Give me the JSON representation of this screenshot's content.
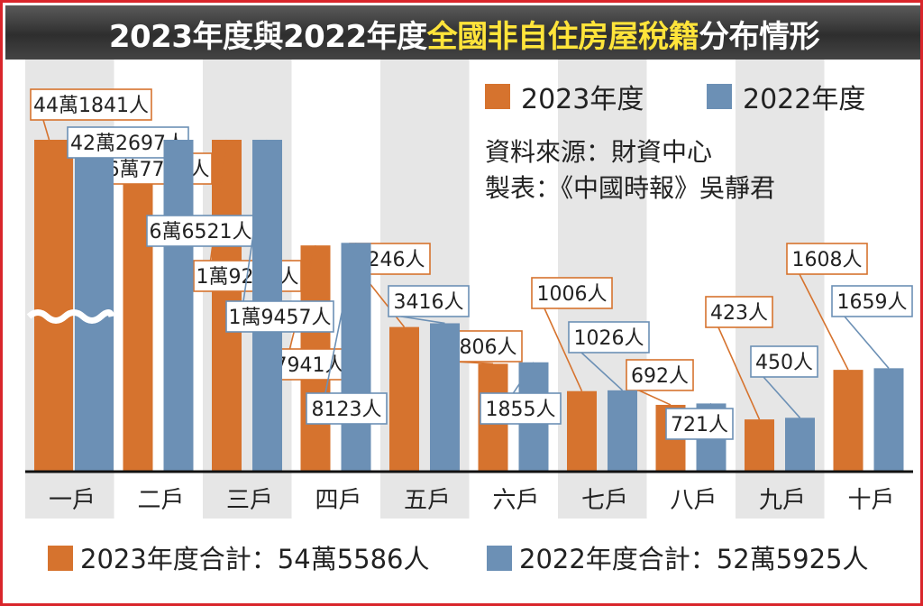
{
  "title": {
    "part1": "2023年度與2022年度",
    "part2": "全國非自住房屋稅籍",
    "part3": "分布情形"
  },
  "legend": {
    "s2023": "2023年度",
    "s2022": "2022年度"
  },
  "source": {
    "line1": "資料來源：財資中心",
    "line2": "製表：《中國時報》吳靜君"
  },
  "totals": {
    "t2023": "2023年度合計：54萬5586人",
    "t2022": "2022年度合計：52萬5925人"
  },
  "colors": {
    "s2023": "#d6732e",
    "s2022": "#6c90b5",
    "title_highlight": "#ffe43a",
    "frame": "#d9252b"
  },
  "chart_data": {
    "type": "bar",
    "categories": [
      "一戶",
      "二戶",
      "三戶",
      "四戶",
      "五戶",
      "六戶",
      "七戶",
      "八戶",
      "九戶",
      "十戶"
    ],
    "series": [
      {
        "name": "2023年度",
        "values": [
          441841,
          67783,
          19240,
          7941,
          3246,
          1806,
          1006,
          692,
          423,
          1608
        ],
        "labels": [
          "44萬1841人",
          "6萬7783人",
          "1萬9240人",
          "7941人",
          "3246人",
          "1806人",
          "1006人",
          "692人",
          "423人",
          "1608人"
        ]
      },
      {
        "name": "2022年度",
        "values": [
          422697,
          66521,
          19457,
          8123,
          3416,
          1855,
          1026,
          721,
          450,
          1659
        ],
        "labels": [
          "42萬2697人",
          "6萬6521人",
          "1萬9457人",
          "8123人",
          "3416人",
          "1855人",
          "1026人",
          "721人",
          "450人",
          "1659人"
        ]
      }
    ],
    "axis_break": true,
    "legend_position": "top-right",
    "grid": false
  }
}
